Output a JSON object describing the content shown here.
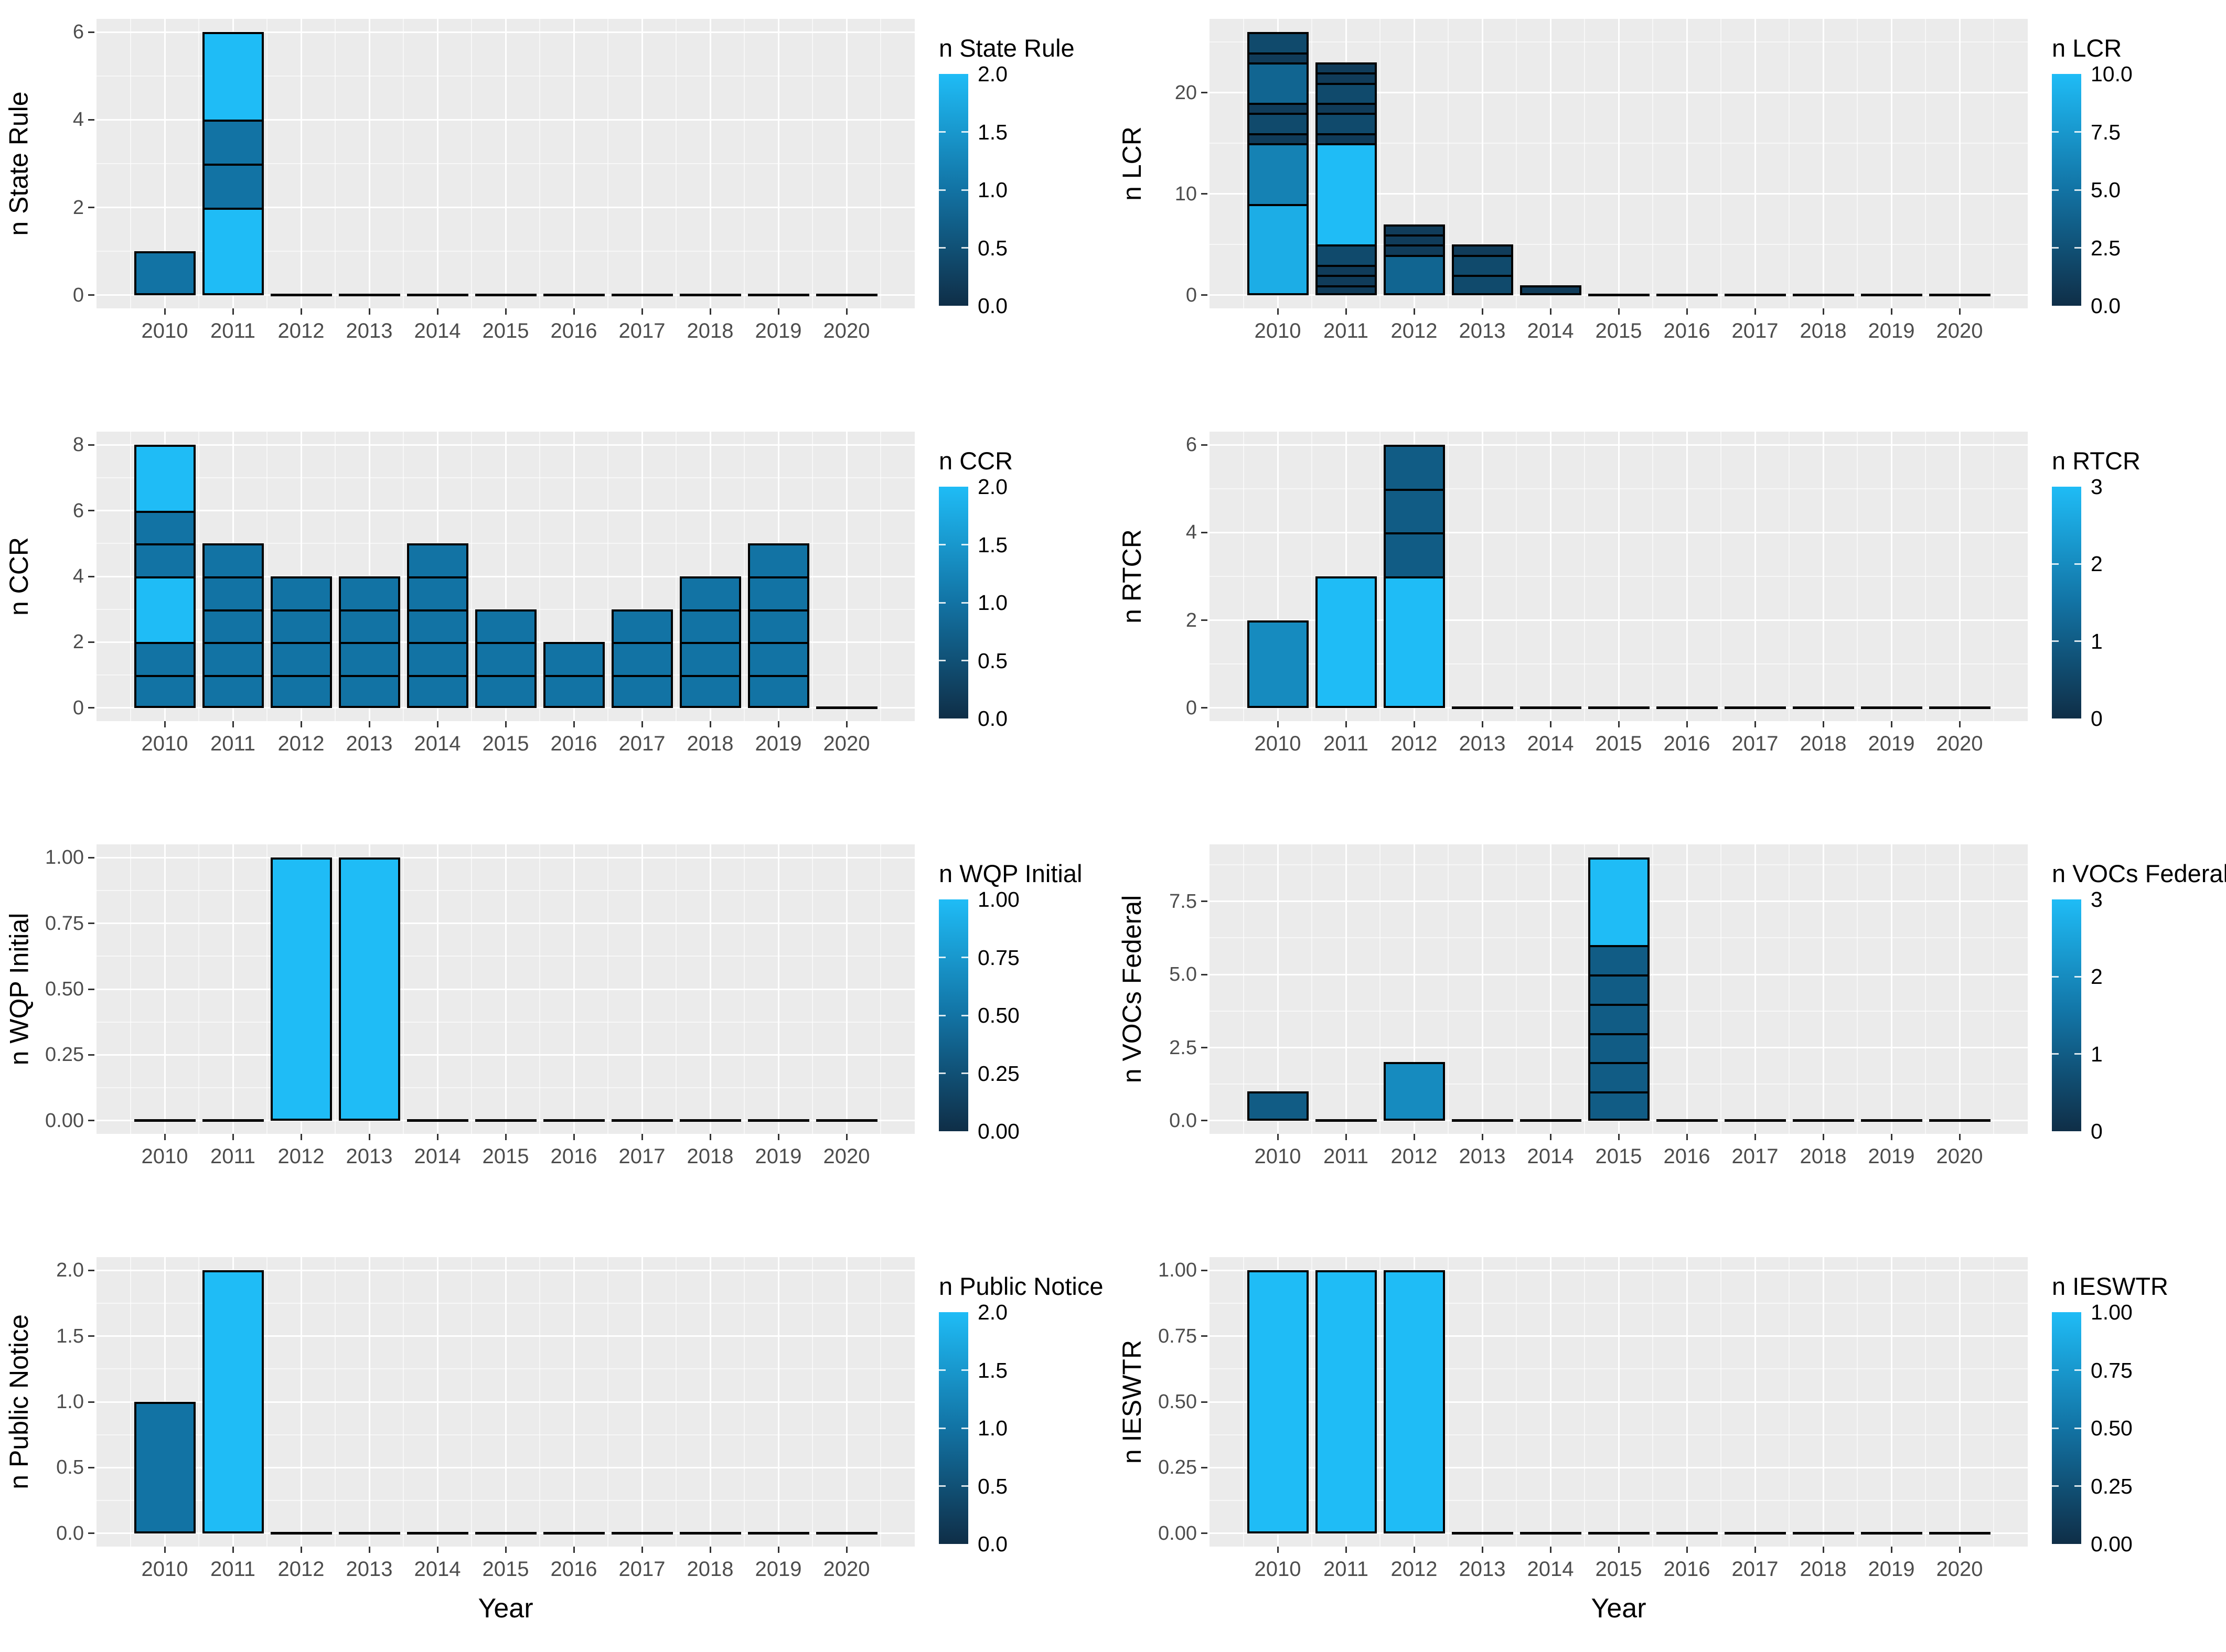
{
  "page": {
    "background": "#FFFFFF"
  },
  "palette": {
    "gradient_low": "#0F2E47",
    "gradient_mid": "#1273A4",
    "gradient_high": "#1FBCF6",
    "panel_bg": "#EBEBEB",
    "grid_major": "#FFFFFF",
    "grid_minor": "#FFFFFF",
    "tick_label_color": "#4D4D4D",
    "axis_title_color": "#000000",
    "bar_outline": "#000000"
  },
  "x_axis": {
    "label": "Year",
    "years": [
      2010,
      2011,
      2012,
      2013,
      2014,
      2015,
      2016,
      2017,
      2018,
      2019,
      2020
    ]
  },
  "chart_data": [
    {
      "id": "n-state-rule",
      "type": "bar",
      "stacked": true,
      "title": "",
      "ylabel": "n State Rule",
      "xlabel": "",
      "ymax": 6,
      "grid": true,
      "yticks": [
        {
          "value": 0,
          "label": "0"
        },
        {
          "value": 2,
          "label": "2"
        },
        {
          "value": 4,
          "label": "4"
        },
        {
          "value": 6,
          "label": "6"
        }
      ],
      "legend": {
        "title": "n State Rule",
        "position": "right",
        "max": 2,
        "ticks": [
          {
            "value": 2.0,
            "label": "2.0"
          },
          {
            "value": 1.5,
            "label": "1.5"
          },
          {
            "value": 1.0,
            "label": "1.0"
          },
          {
            "value": 0.5,
            "label": "0.5"
          },
          {
            "value": 0.0,
            "label": "0.0"
          }
        ]
      },
      "bars": [
        [
          1
        ],
        [
          2,
          1,
          1,
          2
        ],
        [],
        [],
        [],
        [],
        [],
        [],
        [],
        [],
        []
      ]
    },
    {
      "id": "n-lcr",
      "type": "bar",
      "stacked": true,
      "title": "",
      "ylabel": "n LCR",
      "xlabel": "",
      "ymax": 26,
      "grid": true,
      "yticks": [
        {
          "value": 0,
          "label": "0"
        },
        {
          "value": 10,
          "label": "10"
        },
        {
          "value": 20,
          "label": "20"
        }
      ],
      "legend": {
        "title": "n LCR",
        "position": "right",
        "max": 10,
        "ticks": [
          {
            "value": 10.0,
            "label": "10.0"
          },
          {
            "value": 7.5,
            "label": "7.5"
          },
          {
            "value": 5.0,
            "label": "5.0"
          },
          {
            "value": 2.5,
            "label": "2.5"
          },
          {
            "value": 0.0,
            "label": "0.0"
          }
        ]
      },
      "bars": [
        [
          9,
          6,
          1,
          2,
          1,
          4,
          1,
          2
        ],
        [
          1,
          1,
          1,
          2,
          10,
          1,
          2,
          1,
          2,
          1,
          1
        ],
        [
          4,
          1,
          1,
          1
        ],
        [
          2,
          2,
          1
        ],
        [
          1
        ],
        [],
        [],
        [],
        [],
        [],
        []
      ]
    },
    {
      "id": "n-ccr",
      "type": "bar",
      "stacked": true,
      "title": "",
      "ylabel": "n CCR",
      "xlabel": "",
      "ymax": 8,
      "grid": true,
      "yticks": [
        {
          "value": 0,
          "label": "0"
        },
        {
          "value": 2,
          "label": "2"
        },
        {
          "value": 4,
          "label": "4"
        },
        {
          "value": 6,
          "label": "6"
        },
        {
          "value": 8,
          "label": "8"
        }
      ],
      "legend": {
        "title": "n CCR",
        "position": "right",
        "max": 2,
        "ticks": [
          {
            "value": 2.0,
            "label": "2.0"
          },
          {
            "value": 1.5,
            "label": "1.5"
          },
          {
            "value": 1.0,
            "label": "1.0"
          },
          {
            "value": 0.5,
            "label": "0.5"
          },
          {
            "value": 0.0,
            "label": "0.0"
          }
        ]
      },
      "bars": [
        [
          1,
          1,
          2,
          1,
          1,
          2
        ],
        [
          1,
          1,
          1,
          1,
          1
        ],
        [
          1,
          1,
          1,
          1
        ],
        [
          1,
          1,
          1,
          1
        ],
        [
          1,
          1,
          1,
          1,
          1
        ],
        [
          1,
          1,
          1
        ],
        [
          1,
          1
        ],
        [
          1,
          1,
          1
        ],
        [
          1,
          1,
          1,
          1
        ],
        [
          1,
          1,
          1,
          1,
          1
        ],
        []
      ]
    },
    {
      "id": "n-rtcr",
      "type": "bar",
      "stacked": true,
      "title": "",
      "ylabel": "n RTCR",
      "xlabel": "",
      "ymax": 6,
      "grid": true,
      "yticks": [
        {
          "value": 0,
          "label": "0"
        },
        {
          "value": 2,
          "label": "2"
        },
        {
          "value": 4,
          "label": "4"
        },
        {
          "value": 6,
          "label": "6"
        }
      ],
      "legend": {
        "title": "n RTCR",
        "position": "right",
        "max": 3,
        "ticks": [
          {
            "value": 3,
            "label": "3"
          },
          {
            "value": 2,
            "label": "2"
          },
          {
            "value": 1,
            "label": "1"
          },
          {
            "value": 0,
            "label": "0"
          }
        ]
      },
      "bars": [
        [
          2
        ],
        [
          3
        ],
        [
          3,
          1,
          1,
          1
        ],
        [],
        [],
        [],
        [],
        [],
        [],
        [],
        []
      ]
    },
    {
      "id": "n-wqp-initial",
      "type": "bar",
      "stacked": true,
      "title": "",
      "ylabel": "n WQP Initial",
      "xlabel": "",
      "ymax": 1,
      "grid": true,
      "yticks": [
        {
          "value": 0,
          "label": "0.00"
        },
        {
          "value": 0.25,
          "label": "0.25"
        },
        {
          "value": 0.5,
          "label": "0.50"
        },
        {
          "value": 0.75,
          "label": "0.75"
        },
        {
          "value": 1,
          "label": "1.00"
        }
      ],
      "legend": {
        "title": "n WQP Initial",
        "position": "right",
        "max": 1,
        "ticks": [
          {
            "value": 1.0,
            "label": "1.00"
          },
          {
            "value": 0.75,
            "label": "0.75"
          },
          {
            "value": 0.5,
            "label": "0.50"
          },
          {
            "value": 0.25,
            "label": "0.25"
          },
          {
            "value": 0.0,
            "label": "0.00"
          }
        ]
      },
      "bars": [
        [],
        [],
        [
          1
        ],
        [
          1
        ],
        [],
        [],
        [],
        [],
        [],
        [],
        []
      ]
    },
    {
      "id": "n-vocs-federal",
      "type": "bar",
      "stacked": true,
      "title": "",
      "ylabel": "n VOCs Federal",
      "xlabel": "",
      "ymax": 9,
      "grid": true,
      "yticks": [
        {
          "value": 0,
          "label": "0.0"
        },
        {
          "value": 2.5,
          "label": "2.5"
        },
        {
          "value": 5,
          "label": "5.0"
        },
        {
          "value": 7.5,
          "label": "7.5"
        }
      ],
      "legend": {
        "title": "n VOCs Federal",
        "position": "right",
        "max": 3,
        "ticks": [
          {
            "value": 3,
            "label": "3"
          },
          {
            "value": 2,
            "label": "2"
          },
          {
            "value": 1,
            "label": "1"
          },
          {
            "value": 0,
            "label": "0"
          }
        ]
      },
      "bars": [
        [
          1
        ],
        [],
        [
          2
        ],
        [],
        [],
        [
          1,
          1,
          1,
          1,
          1,
          1,
          3
        ],
        [],
        [],
        [],
        [],
        []
      ]
    },
    {
      "id": "n-public-notice",
      "type": "bar",
      "stacked": true,
      "title": "",
      "ylabel": "n Public Notice",
      "xlabel": "Year",
      "ymax": 2,
      "grid": true,
      "yticks": [
        {
          "value": 0,
          "label": "0.0"
        },
        {
          "value": 0.5,
          "label": "0.5"
        },
        {
          "value": 1,
          "label": "1.0"
        },
        {
          "value": 1.5,
          "label": "1.5"
        },
        {
          "value": 2,
          "label": "2.0"
        }
      ],
      "legend": {
        "title": "n Public Notice",
        "position": "right",
        "max": 2,
        "ticks": [
          {
            "value": 2.0,
            "label": "2.0"
          },
          {
            "value": 1.5,
            "label": "1.5"
          },
          {
            "value": 1.0,
            "label": "1.0"
          },
          {
            "value": 0.5,
            "label": "0.5"
          },
          {
            "value": 0.0,
            "label": "0.0"
          }
        ]
      },
      "bars": [
        [
          1
        ],
        [
          2
        ],
        [],
        [],
        [],
        [],
        [],
        [],
        [],
        [],
        []
      ]
    },
    {
      "id": "n-ieswtr",
      "type": "bar",
      "stacked": true,
      "title": "",
      "ylabel": "n IESWTR",
      "xlabel": "Year",
      "ymax": 1,
      "grid": true,
      "yticks": [
        {
          "value": 0,
          "label": "0.00"
        },
        {
          "value": 0.25,
          "label": "0.25"
        },
        {
          "value": 0.5,
          "label": "0.50"
        },
        {
          "value": 0.75,
          "label": "0.75"
        },
        {
          "value": 1,
          "label": "1.00"
        }
      ],
      "legend": {
        "title": "n IESWTR",
        "position": "right",
        "max": 1,
        "ticks": [
          {
            "value": 1.0,
            "label": "1.00"
          },
          {
            "value": 0.75,
            "label": "0.75"
          },
          {
            "value": 0.5,
            "label": "0.50"
          },
          {
            "value": 0.25,
            "label": "0.25"
          },
          {
            "value": 0.0,
            "label": "0.00"
          }
        ]
      },
      "bars": [
        [
          1
        ],
        [
          1
        ],
        [
          1
        ],
        [],
        [],
        [],
        [],
        [],
        [],
        [],
        []
      ]
    }
  ]
}
